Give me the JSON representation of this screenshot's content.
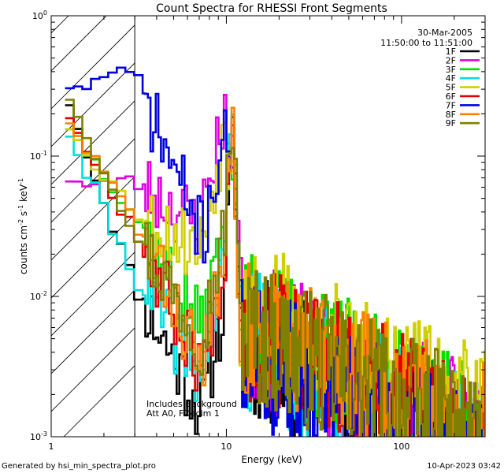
{
  "chart_data": {
    "type": "line",
    "title": "Count Spectra for RHESSI Front Segments",
    "xlabel": "Energy (keV)",
    "ylabel_parts": {
      "base": "counts cm",
      "exp1": "-2",
      "mid1": " s",
      "exp2": "-1",
      "mid2": " keV",
      "exp3": "-1"
    },
    "xscale": "log",
    "yscale": "log",
    "xlim": [
      1,
      300
    ],
    "ylim": [
      0.001,
      1
    ],
    "x_ticks": [
      {
        "v": 1,
        "label": "1"
      },
      {
        "v": 10,
        "label": "10"
      },
      {
        "v": 100,
        "label": "100"
      }
    ],
    "y_ticks": [
      {
        "v": 0.001,
        "base": "10",
        "exp": "-3"
      },
      {
        "v": 0.01,
        "base": "10",
        "exp": "-2"
      },
      {
        "v": 0.1,
        "base": "10",
        "exp": "-1"
      },
      {
        "v": 1,
        "base": "10",
        "exp": "0"
      }
    ],
    "hatched_region": {
      "from": 1,
      "to": 3
    },
    "date": "30-Mar-2005",
    "time_range": "11:50:00 to 11:51:00",
    "notes": [
      "Includes Background",
      "Att A0, FDecim 1"
    ],
    "footer_left": "Generated by hsi_min_spectra_plot.pro",
    "footer_right": "10-Apr-2023 03:42",
    "series": [
      {
        "name": "1F",
        "color": "#000000",
        "seed": 11,
        "y_at_1_2": 0.28,
        "y_at_3": 0.012,
        "min_mid": 0.0012,
        "peak": 0.13,
        "tail_level": 0.0028
      },
      {
        "name": "2F",
        "color": "#e000e0",
        "seed": 23,
        "y_at_1_2": 0.066,
        "y_at_3": 0.065,
        "min_mid": 0.03,
        "peak": 0.14,
        "tail_level": 0.0035
      },
      {
        "name": "3F",
        "color": "#00e000",
        "seed": 37,
        "y_at_1_2": 0.17,
        "y_at_3": 0.04,
        "min_mid": 0.0045,
        "peak": 0.13,
        "tail_level": 0.004
      },
      {
        "name": "4F",
        "color": "#00e0e0",
        "seed": 41,
        "y_at_1_2": 0.16,
        "y_at_3": 0.014,
        "min_mid": 0.0022,
        "peak": 0.2,
        "tail_level": 0.003
      },
      {
        "name": "5F",
        "color": "#d0d000",
        "seed": 53,
        "y_at_1_2": 0.17,
        "y_at_3": 0.04,
        "min_mid": 0.02,
        "peak": 0.13,
        "tail_level": 0.005
      },
      {
        "name": "6F",
        "color": "#e00000",
        "seed": 67,
        "y_at_1_2": 0.21,
        "y_at_3": 0.03,
        "min_mid": 0.0025,
        "peak": 0.14,
        "tail_level": 0.0035
      },
      {
        "name": "7F",
        "color": "#0000e0",
        "seed": 71,
        "y_at_1_2": 0.3,
        "y_at_3": 0.38,
        "min_mid": 0.02,
        "peak": 0.12,
        "tail_level": 0.0025
      },
      {
        "name": "8F",
        "color": "#ff8000",
        "seed": 83,
        "y_at_1_2": 0.19,
        "y_at_3": 0.035,
        "min_mid": 0.0025,
        "peak": 0.14,
        "tail_level": 0.004
      },
      {
        "name": "9F",
        "color": "#808000",
        "seed": 97,
        "y_at_1_2": 0.29,
        "y_at_3": 0.03,
        "min_mid": 0.004,
        "peak": 0.14,
        "tail_level": 0.0035
      }
    ]
  }
}
